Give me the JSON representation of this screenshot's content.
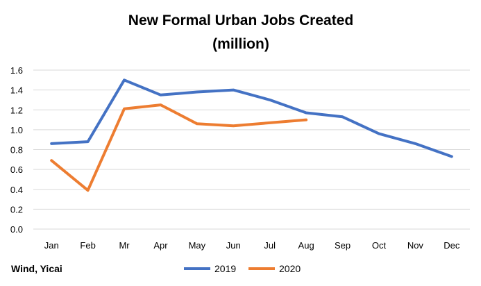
{
  "chart_data": {
    "type": "line",
    "title_lines": [
      "New Formal Urban Jobs Created",
      "(million)"
    ],
    "categories": [
      "Jan",
      "Feb",
      "Mr",
      "Apr",
      "May",
      "Jun",
      "Jul",
      "Aug",
      "Sep",
      "Oct",
      "Nov",
      "Dec"
    ],
    "y_ticks": [
      "0.0",
      "0.2",
      "0.4",
      "0.6",
      "0.8",
      "1.0",
      "1.2",
      "1.4",
      "1.6"
    ],
    "ylim": [
      0,
      1.6
    ],
    "grid": true,
    "legend_position": "bottom",
    "series": [
      {
        "name": "2019",
        "color": "#4472C4",
        "values": [
          0.86,
          0.88,
          1.5,
          1.35,
          1.38,
          1.4,
          1.3,
          1.17,
          1.13,
          0.96,
          0.86,
          0.73
        ]
      },
      {
        "name": "2020",
        "color": "#ED7D31",
        "values": [
          0.69,
          0.39,
          1.21,
          1.25,
          1.06,
          1.04,
          1.07,
          1.1,
          null,
          null,
          null,
          null
        ]
      }
    ]
  },
  "source": "Wind, Yicai"
}
